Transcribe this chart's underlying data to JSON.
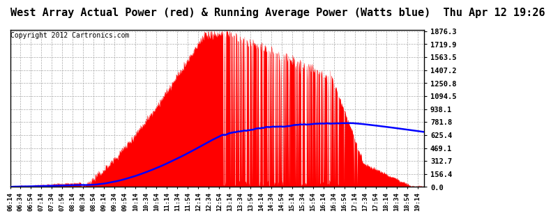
{
  "title": "West Array Actual Power (red) & Running Average Power (Watts blue)  Thu Apr 12 19:26",
  "copyright": "Copyright 2012 Cartronics.com",
  "y_tick_labels": [
    "0.0",
    "156.4",
    "312.7",
    "469.1",
    "625.4",
    "781.8",
    "938.1",
    "1094.5",
    "1250.8",
    "1407.2",
    "1563.5",
    "1719.9",
    "1876.3"
  ],
  "y_max": 1876.3,
  "y_min": 0.0,
  "bg_color": "#ffffff",
  "plot_bg_color": "#ffffff",
  "grid_color": "#aaaaaa",
  "title_fontsize": 11,
  "copyright_fontsize": 7,
  "tick_label_fontsize": 7.5,
  "x_label_fontsize": 6.5
}
